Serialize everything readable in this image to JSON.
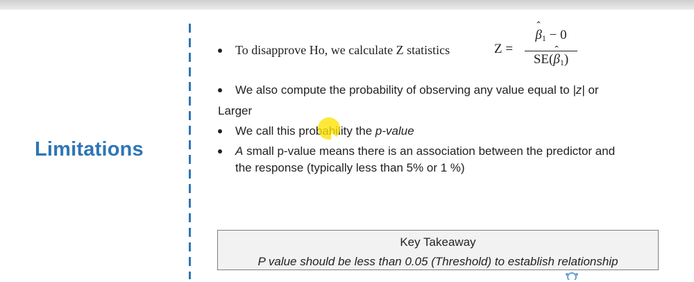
{
  "slide": {
    "section_title": "Limitations",
    "bullets": [
      {
        "text": "To disapprove  Ho, we calculate Z statistics"
      },
      {
        "text_a": "We also compute the probability of observing any value equal to ",
        "text_italic": "|z|",
        "text_b": " or",
        "continuation": "Larger"
      },
      {
        "text_a": "We call this probability the ",
        "text_italic": "p-value"
      },
      {
        "text_italic": "A",
        "text_a": " small p-value means there is an association between the predictor and",
        "continuation": "the response (typically less than 5% or 1 %)"
      }
    ],
    "formula": {
      "lhs": "Z =",
      "numerator_beta": "β",
      "numerator_sub": "1",
      "numerator_rest": " − 0",
      "denominator_prefix": "SE(",
      "denominator_beta": "β",
      "denominator_sub": "1",
      "denominator_suffix": ")"
    },
    "takeaway": {
      "title": "Key Takeaway",
      "body": "P value should be less than 0.05 (Threshold) to establish relationship"
    }
  },
  "colors": {
    "accent": "#2e75b6",
    "takeaway_bg": "#f2f2f2",
    "highlight": "#ffe100"
  },
  "icons": {
    "cursor": "cursor-highlight-icon",
    "watermark": "logo-icon"
  }
}
